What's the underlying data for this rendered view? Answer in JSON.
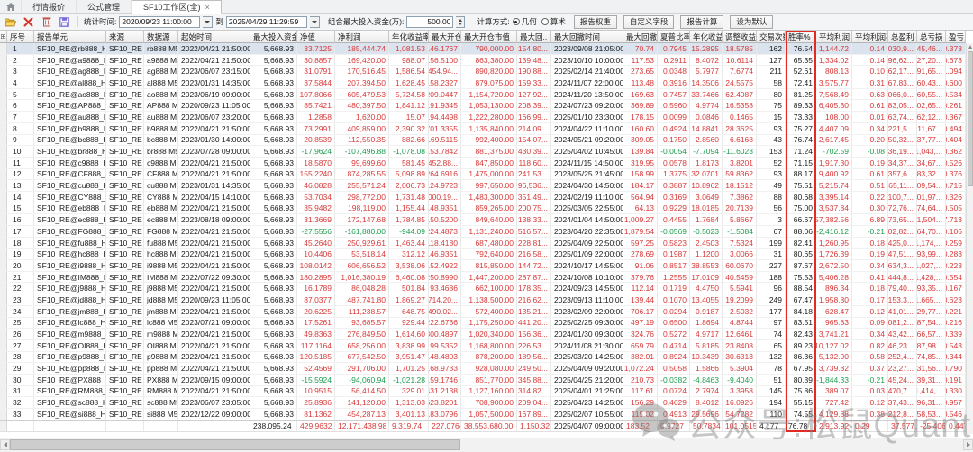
{
  "tabs": {
    "items": [
      {
        "label": "行情报价"
      },
      {
        "label": "公式管理"
      },
      {
        "label": "SF10工作区(全)",
        "close": "×"
      }
    ]
  },
  "toolbar": {
    "stat_time_label": "统计时间:",
    "start_time": "2020/09/23 11:00:00",
    "to_label": "到",
    "end_time": "2025/04/29 11:29:59",
    "max_capital_label": "组合最大投入资金(万):",
    "max_capital_value": "500.00",
    "calc_method_label": "计算方式:",
    "radio_geometric": "几何",
    "radio_arithmetic": "算术",
    "buttons": [
      "报告权重",
      "自定义字段",
      "报告计算",
      "设为默认"
    ]
  },
  "colors": {
    "positive": "#d83a3a",
    "negative": "#1e9e50",
    "neutral": "#1a1a1a",
    "highlight_box": "#e22a22",
    "selected_row_bg": "#dbe4ee"
  },
  "watermark": {
    "text": "公众号:松鼠Quant"
  },
  "table": {
    "highlighted_column": "win-rate",
    "selected_row": 1,
    "columns": [
      {
        "key": "seq",
        "label": "序号"
      },
      {
        "key": "report-unit",
        "label": "报告单元"
      },
      {
        "key": "source",
        "label": "来源"
      },
      {
        "key": "data-source",
        "label": "数据源"
      },
      {
        "key": "start-time",
        "label": "起始时间"
      },
      {
        "key": "max-capital",
        "label": "最大投入资金"
      },
      {
        "key": "net-value",
        "label": "净值"
      },
      {
        "key": "net-profit",
        "label": "净利润"
      },
      {
        "key": "annual-return-pct",
        "label": "年化收益率%"
      },
      {
        "key": "max-open",
        "label": "最大开仓.."
      },
      {
        "key": "max-open-value",
        "label": "最大开仓市值"
      },
      {
        "key": "max-drawdown",
        "label": "最大回.."
      },
      {
        "key": "max-drawdown-time",
        "label": "最大回撤时间"
      },
      {
        "key": "max-drawdown-rate",
        "label": "最大回撤.."
      },
      {
        "key": "sharpe",
        "label": "夏普比率"
      },
      {
        "key": "annual-return2",
        "label": "年化收益.."
      },
      {
        "key": "adjusted-return",
        "label": "调整收益.."
      },
      {
        "key": "trade-count",
        "label": "交易次数"
      },
      {
        "key": "win-rate",
        "label": "胜率%"
      },
      {
        "key": "avg-profit",
        "label": "平均利润"
      },
      {
        "key": "avg-profit-rate",
        "label": "平均利润率%"
      },
      {
        "key": "total-profit",
        "label": "总盈利"
      },
      {
        "key": "total-loss",
        "label": "总亏损"
      },
      {
        "key": "pl-ratio",
        "label": "盈亏比"
      }
    ],
    "rows": [
      [
        "1",
        "SF10_RE@rb888_H1",
        "SF10_RE",
        "rb888 M5",
        "2022/04/21 21:50:00",
        "5,668.93",
        "33.7125",
        "185,444.74",
        "1,081.53",
        "146.1767",
        "790,000.00",
        "154,80...",
        "2023/09/08 21:05:00",
        "70.74",
        "0.7945",
        "15.2895",
        "18.5785",
        "162",
        "76.54",
        "1,144.72",
        "0.14",
        "1,030,9...",
        "-845,46...",
        "0.373"
      ],
      [
        "2",
        "SF10_RE@a9888_H1",
        "SF10_RE",
        "a9888 M5",
        "2022/04/21 21:50:00",
        "5,668.93",
        "30.8857",
        "169,420.00",
        "988.07",
        "156.5100",
        "863,380.00",
        "139,48...",
        "2023/10/10 10:00:00",
        "117.53",
        "0.2911",
        "8.4072",
        "10.6114",
        "127",
        "65.35",
        "1,334.02",
        "0.14",
        "796,62...",
        "-627,20...",
        "0.673"
      ],
      [
        "3",
        "SF10_RE@ag888_H1",
        "SF10_RE",
        "ag888 M5",
        "2023/06/07 23:15:00",
        "5,668.93",
        "31.0791",
        "170,516.45",
        "1,586.54",
        "1,454.94...",
        "890,820.00",
        "190,88...",
        "2025/02/14 21:40:00",
        "273.65",
        "0.0348",
        "5.7977",
        "7.6774",
        "211",
        "52.61",
        "808.13",
        "0.10",
        "962,17...",
        "-791,65...",
        "1.094"
      ],
      [
        "4",
        "SF10_RE@al888_H1",
        "SF10_RE",
        "al888 M5",
        "2023/01/31 14:35:00",
        "5,668.93",
        "37.5844",
        "207,394.50",
        "1,628.45",
        "158.2327",
        "879,075.00",
        "159,33...",
        "2024/11/07 22:00:00",
        "113.48",
        "0.3916",
        "14.3506",
        "24.5575",
        "58",
        "72.41",
        "3,575.77",
        "0.31",
        "567,83...",
        "-360,43...",
        "0.600"
      ],
      [
        "5",
        "SF10_RE@ao888_H1",
        "SF10_RE",
        "ao888 M5",
        "2023/06/19 09:00:00",
        "5,668.93",
        "107.8066",
        "605,479.53",
        "5,724.58",
        "209.0447",
        "1,154,720.00",
        "127,92...",
        "2024/11/20 13:50:00",
        "169.63",
        "0.7457",
        "33.7466",
        "62.4087",
        "80",
        "81.25",
        "7,568.49",
        "0.63",
        "1,066,0...",
        "-460,55...",
        "0.534"
      ],
      [
        "6",
        "SF10_RE@AP888_H1",
        "SF10_RE",
        "AP888 M5",
        "2020/09/23 11:05:00",
        "5,668.93",
        "85.7421",
        "480,397.50",
        "1,841.12",
        "191.9345",
        "1,053,130.00",
        "208,39...",
        "2024/07/23 09:20:00",
        "369.89",
        "0.5960",
        "4.9774",
        "16.5358",
        "75",
        "89.33",
        "6,405.30",
        "0.61",
        "883,05...",
        "-402,65...",
        "0.261"
      ],
      [
        "7",
        "SF10_RE@au888_H1",
        "SF10_RE",
        "au888 M5",
        "2023/06/07 23:20:00",
        "5,668.93",
        "1.2858",
        "1,620.00",
        "15.07",
        "194.4498",
        "1,222,280.00",
        "166,99...",
        "2025/01/10 23:30:00",
        "178.15",
        "0.0099",
        "0.0846",
        "0.1465",
        "15",
        "73.33",
        "108.00",
        "0.01",
        "163,74...",
        "-162,12...",
        "0.367"
      ],
      [
        "8",
        "SF10_RE@b9888_H1",
        "SF10_RE",
        "b9888 M5",
        "2022/04/21 21:50:00",
        "5,668.93",
        "73.2991",
        "409,859.00",
        "2,390.32",
        "701.3355",
        "1,135,840.00",
        "214,09...",
        "2024/04/22 11:10:00",
        "160.60",
        "0.4924",
        "14.8841",
        "28.3625",
        "93",
        "75.27",
        "4,407.09",
        "0.34",
        "1,221,5...",
        "-811,67...",
        "0.494"
      ],
      [
        "9",
        "SF10_RE@bc888_H1",
        "SF10_RE",
        "bc888 M5",
        "2023/01/30 14:00:00",
        "5,668.93",
        "20.8539",
        "112,550.35",
        "882.66",
        "169.5115",
        "992,400.00",
        "154,07...",
        "2024/05/21 09:20:00",
        "309.05",
        "0.1750",
        "2.8560",
        "6.6168",
        "43",
        "76.74",
        "2,617.45",
        "0.20",
        "450,32...",
        "-337,77...",
        "0.404"
      ],
      [
        "10",
        "SF10_RE@br888_H1",
        "SF10_RE",
        "br888 M5",
        "2023/07/28 09:00:00",
        "5,668.93",
        "-17.9624",
        "-107,496.88",
        "-1,078.08",
        "153.7842",
        "881,375.00",
        "430,39...",
        "2025/04/02 10:45:00",
        "139.84",
        "-0.0054",
        "-7.7094",
        "-11.6023",
        "153",
        "71.24",
        "-702.59",
        "-0.08",
        "936,19...",
        "-1,043,...",
        "0.362"
      ],
      [
        "11",
        "SF10_RE@c9888_H1",
        "SF10_RE",
        "c9888 M5",
        "2022/04/21 21:50:00",
        "5,668.93",
        "18.5870",
        "99,699.60",
        "581.45",
        "1,452.88...",
        "847,850.00",
        "118,60...",
        "2024/11/15 14:50:00",
        "319.95",
        "0.0578",
        "1.8173",
        "3.8201",
        "52",
        "71.15",
        "1,917.30",
        "0.19",
        "434,37...",
        "-334,67...",
        "0.526"
      ],
      [
        "12",
        "SF10_RE@CF888_H1",
        "SF10_RE",
        "CF888 M5",
        "2022/04/21 21:50:00",
        "5,668.93",
        "155.2240",
        "874,285.55",
        "5,098.89",
        "264.6916",
        "1,475,000.00",
        "241,53...",
        "2023/05/25 21:45:00",
        "158.99",
        "1.3775",
        "32.0701",
        "59.8362",
        "93",
        "88.17",
        "9,400.92",
        "0.61",
        "1,357,6...",
        "-483,32...",
        "0.376"
      ],
      [
        "13",
        "SF10_RE@cu888_H1",
        "SF10_RE",
        "cu888 M5",
        "2023/01/31 14:35:00",
        "5,668.93",
        "46.0828",
        "255,571.24",
        "2,006.73",
        "124.9723",
        "997,650.00",
        "96,536...",
        "2024/04/30 14:50:00",
        "184.17",
        "0.3887",
        "10.8962",
        "18.1512",
        "49",
        "75.51",
        "5,215.74",
        "0.51",
        "465,11...",
        "-209,54...",
        "0.715"
      ],
      [
        "14",
        "SF10_RE@CY888_H1",
        "SF10_RE",
        "CY888 M5",
        "2022/04/15 14:10:00",
        "5,668.93",
        "53.7034",
        "298,772.00",
        "1,731.48",
        "1,000.19...",
        "1,483,300.00",
        "351,49...",
        "2024/02/19 11:10:00",
        "564.94",
        "0.3169",
        "3.0649",
        "7.3862",
        "88",
        "80.68",
        "3,395.14",
        "0.22",
        "1,100,7...",
        "-801,97...",
        "0.326"
      ],
      [
        "15",
        "SF10_RE@eb888_H1",
        "SF10_RE",
        "eb888 M5",
        "2022/04/21 21:50:00",
        "5,668.93",
        "35.9482",
        "198,119.00",
        "1,155.44",
        "148.9351",
        "859,265.00",
        "200,75...",
        "2025/03/05 22:55:00",
        "64.13",
        "0.9229",
        "18.0185",
        "20.7139",
        "56",
        "75.00",
        "3,537.84",
        "0.30",
        "572,76...",
        "-374,64...",
        "0.505"
      ],
      [
        "16",
        "SF10_RE@ec888_H1",
        "SF10_RE",
        "ec888 M5",
        "2023/08/18 09:00:00",
        "5,668.93",
        "31.3669",
        "172,147.68",
        "1,784.85",
        "150.5200",
        "849,640.00",
        "138,33...",
        "2024/01/04 14:50:00",
        "1,009.27",
        "0.4455",
        "1.7684",
        "5.8667",
        "3",
        "66.67",
        "57,382.56",
        "6.89",
        "173,65...",
        "-1,504...",
        "57.713"
      ],
      [
        "17",
        "SF10_RE@FG888_H1",
        "SF10_RE",
        "FG888 M5",
        "2022/04/21 21:50:00",
        "5,668.93",
        "-27.5556",
        "-161,880.00",
        "-944.09",
        "224.4873",
        "1,131,240.00",
        "516,57...",
        "2023/04/20 22:35:00",
        "1,879.54",
        "-0.0569",
        "-0.5023",
        "-1.5084",
        "67",
        "88.06",
        "-2,416.12",
        "-0.21",
        "602,82...",
        "-764,70...",
        "0.106"
      ],
      [
        "18",
        "SF10_RE@fu888_H1",
        "SF10_RE",
        "fu888 M5",
        "2022/04/21 21:50:00",
        "5,668.93",
        "45.2640",
        "250,929.61",
        "1,463.44",
        "118.4180",
        "687,480.00",
        "228,81...",
        "2025/04/09 22:50:00",
        "597.25",
        "0.5823",
        "2.4503",
        "7.5324",
        "199",
        "82.41",
        "1,260.95",
        "0.18",
        "1,425,0...",
        "-1,174,...",
        "0.259"
      ],
      [
        "19",
        "SF10_RE@hc888_H1",
        "SF10_RE",
        "hc888 M5",
        "2022/04/21 21:50:00",
        "5,668.93",
        "10.4406",
        "53,518.14",
        "312.12",
        "146.9351",
        "792,640.00",
        "216,58...",
        "2025/01/09 22:00:00",
        "278.69",
        "0.1987",
        "1.1200",
        "3.0066",
        "31",
        "80.65",
        "1,726.39",
        "0.19",
        "347,51...",
        "-293,99...",
        "0.283"
      ],
      [
        "20",
        "SF10_RE@i9888_H1",
        "SF10_RE",
        "i9888 M5",
        "2022/04/21 21:50:00",
        "5,668.93",
        "108.0142",
        "606,656.52",
        "3,538.06",
        "152.4922",
        "815,850.00",
        "144,72...",
        "2024/10/17 14:55:00",
        "91.06",
        "0.8517",
        "38.8553",
        "60.0670",
        "227",
        "87.67",
        "2,672.50",
        "0.34",
        "1,634,3...",
        "-1,027,...",
        "0.223"
      ],
      [
        "21",
        "SF10_RE@IM888_H1",
        "SF10_RE",
        "IM888 M5",
        "2022/07/22 09:30:00",
        "5,668.93",
        "180.2895",
        "1,016,380.19",
        "6,460.08",
        "250.8990",
        "1,447,200.00",
        "287,87...",
        "2024/10/08 10:10:00",
        "379.76",
        "1.2555",
        "17.0109",
        "40.5459",
        "188",
        "75.53",
        "5,406.28",
        "0.41",
        "2,444,8...",
        "-1,428,...",
        "0.554"
      ],
      [
        "22",
        "SF10_RE@j9888_H1",
        "SF10_RE",
        "j9888 M5",
        "2022/04/21 21:50:00",
        "5,668.93",
        "16.1789",
        "86,048.28",
        "501.84",
        "93.4686",
        "662,100.00",
        "178,35...",
        "2024/09/23 14:55:00",
        "112.14",
        "0.1719",
        "4.4750",
        "5.5941",
        "96",
        "88.54",
        "896.34",
        "0.18",
        "379,40...",
        "-293,35...",
        "0.167"
      ],
      [
        "23",
        "SF10_RE@jd888_H1",
        "SF10_RE",
        "jd888 M5",
        "2020/09/23 11:05:00",
        "5,668.93",
        "87.0377",
        "487,741.80",
        "1,869.27",
        "2,714.20...",
        "1,138,500.00",
        "216,62...",
        "2023/09/13 11:10:00",
        "139.44",
        "0.1070",
        "13.4055",
        "19.2099",
        "249",
        "67.47",
        "1,958.80",
        "0.17",
        "2,153,3...",
        "-1,665,...",
        "0.623"
      ],
      [
        "24",
        "SF10_RE@jm888_H1",
        "SF10_RE",
        "jm888 M5",
        "2022/04/21 21:50:00",
        "5,668.93",
        "20.6225",
        "111,238.57",
        "648.75",
        "1,490.02...",
        "572,400.00",
        "135,21...",
        "2023/02/09 22:00:00",
        "706.17",
        "0.0294",
        "0.9187",
        "2.5032",
        "177",
        "84.18",
        "628.47",
        "0.12",
        "741,01...",
        "-629,77...",
        "0.221"
      ],
      [
        "25",
        "SF10_RE@lc888_H1",
        "SF10_RE",
        "lc888 M5",
        "2023/07/21 09:00:00",
        "5,668.93",
        "17.5261",
        "93,685.57",
        "929.44",
        "222.6736",
        "1,175,250.00",
        "441,20...",
        "2025/02/25 09:30:00",
        "497.19",
        "0.6500",
        "1.8694",
        "4.8744",
        "97",
        "83.51",
        "965.83",
        "0.09",
        "1,081,2...",
        "-987,54...",
        "0.216"
      ],
      [
        "26",
        "SF10_RE@m9888_H1",
        "SF10_RE",
        "m9888 M5",
        "2022/04/21 21:50:00",
        "5,668.93",
        "49.8363",
        "276,849.50",
        "1,614.60",
        "300.4897",
        "1,020,340.00",
        "156,36...",
        "2024/01/30 09:30:00",
        "324.76",
        "0.5272",
        "4.9717",
        "12.6461",
        "74",
        "82.43",
        "3,741.21",
        "0.34",
        "743,42...",
        "-466,57...",
        "0.339"
      ],
      [
        "27",
        "SF10_RE@OI888_H1",
        "SF10_RE",
        "OI888 M5",
        "2022/04/21 21:50:00",
        "5,668.93",
        "117.1164",
        "658,256.00",
        "3,838.99",
        "199.5352",
        "1,168,800.00",
        "226,53...",
        "2024/11/08 21:30:00",
        "659.79",
        "0.4714",
        "5.8185",
        "23.8408",
        "65",
        "89.23",
        "10,127.02",
        "0.82",
        "846,23...",
        "-187,98...",
        "0.543"
      ],
      [
        "28",
        "SF10_RE@p9888_H1",
        "SF10_RE",
        "p9888 M5",
        "2022/04/21 21:50:00",
        "5,668.93",
        "120.5185",
        "677,542.50",
        "3,951.47",
        "148.4803",
        "878,200.00",
        "189,56...",
        "2025/03/20 14:25:00",
        "382.01",
        "0.8924",
        "10.3439",
        "30.6313",
        "132",
        "86.36",
        "5,132.90",
        "0.58",
        "1,252,4...",
        "-574,85...",
        "0.344"
      ],
      [
        "29",
        "SF10_RE@pp888_H1",
        "SF10_RE",
        "pp888 M5",
        "2022/04/21 21:50:00",
        "5,668.93",
        "52.4569",
        "291,706.00",
        "1,701.25",
        "168.9733",
        "928,080.00",
        "249,50...",
        "2025/04/09 09:20:00",
        "1,072.24",
        "0.5058",
        "1.5866",
        "5.3904",
        "78",
        "67.95",
        "3,739.82",
        "0.37",
        "723,27...",
        "-431,56...",
        "0.790"
      ],
      [
        "30",
        "SF10_RE@PX888_H1",
        "SF10_RE",
        "PX888 M5",
        "2023/09/15 09:00:00",
        "5,668.93",
        "-15.5924",
        "-94,060.94",
        "-1,021.28",
        "159.1746",
        "851,770.00",
        "345,88...",
        "2025/04/25 21:20:00",
        "210.73",
        "-0.0382",
        "-4.8463",
        "-9.4040",
        "51",
        "80.39",
        "-1,844.33",
        "-0.21",
        "345,24...",
        "-439,31...",
        "0.191"
      ],
      [
        "31",
        "SF10_RE@RM888_H1",
        "SF10_RE",
        "RM888 M5",
        "2022/04/21 21:50:00",
        "5,668.93",
        "10.9515",
        "56,414.50",
        "329.01",
        "431.2138",
        "1,127,160.00",
        "314,82...",
        "2025/04/01 21:25:00",
        "117.61",
        "0.0724",
        "2.7974",
        "3.3958",
        "145",
        "75.86",
        "389.07",
        "0.03",
        "1,470,7...",
        "-1,414,...",
        "0.330"
      ],
      [
        "32",
        "SF10_RE@sc888_H1",
        "SF10_RE",
        "sc888 M5",
        "2023/06/07 23:05:00",
        "5,668.93",
        "25.8936",
        "141,120.00",
        "1,313.03",
        "523.8201",
        "708,900.00",
        "209,04...",
        "2025/04/23 14:25:00",
        "156.29",
        "0.4629",
        "8.4012",
        "16.0926",
        "194",
        "55.15",
        "727.42",
        "0.12",
        "937,43...",
        "-796,31...",
        "0.957"
      ],
      [
        "33",
        "SF10_RE@si888_H1",
        "SF10_RE",
        "si888 M5",
        "2022/12/22 09:00:00",
        "5,668.93",
        "81.1362",
        "454,287.13",
        "3,401.13",
        "183.0796",
        "1,057,500.00",
        "167,89...",
        "2025/02/07 10:55:00",
        "115.02",
        "0.4913",
        "29.5696",
        "54.7282",
        "110",
        "74.55",
        "4,129.88",
        "0.38",
        "1,212,8...",
        "-758,53...",
        "0.546"
      ]
    ],
    "summary": [
      "",
      "",
      "",
      "",
      "",
      "238,095.24",
      "429.9632",
      "12,171,438.98",
      "9,319.74",
      "227.0764",
      "38,553,680.00",
      "1,150,320",
      "2025/04/07 09:00:00",
      "183.52",
      "0.9727",
      "50.7834",
      "101.0515",
      "4,177",
      "76.78",
      "2,913.92",
      "0.29",
      "37,577,74...",
      "-25,406,3...",
      "0.4474"
    ]
  }
}
